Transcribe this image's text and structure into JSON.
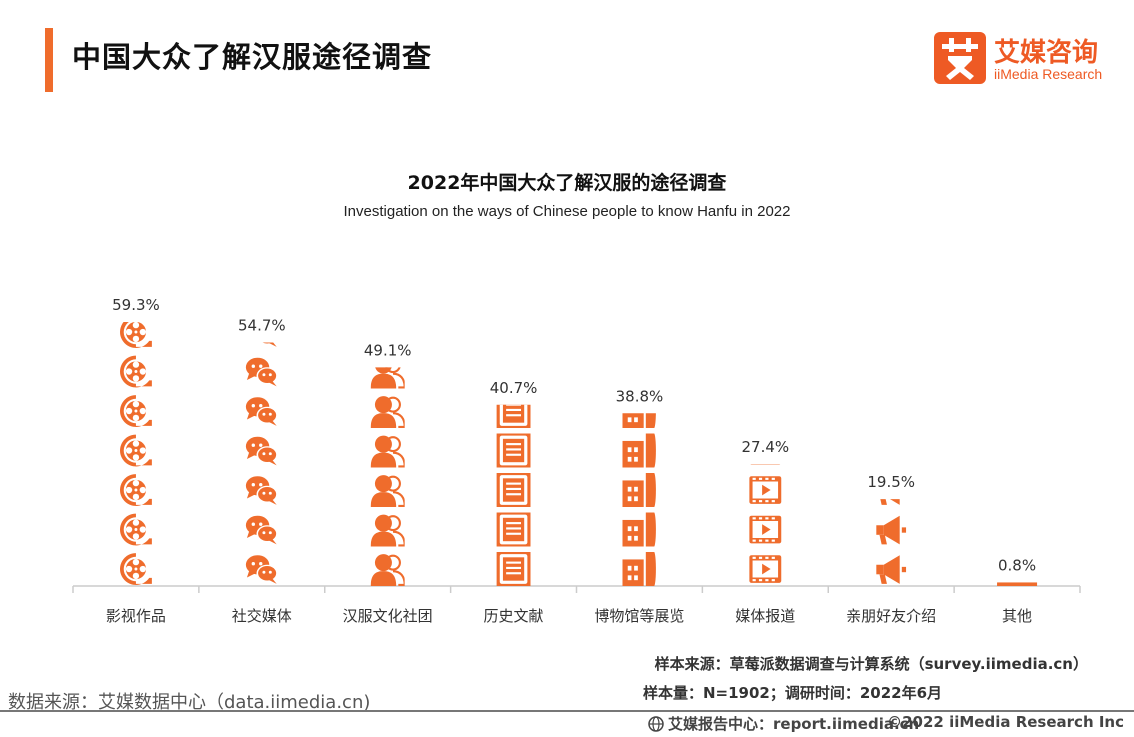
{
  "header": {
    "title": "中国大众了解汉服途径调查"
  },
  "logo": {
    "mark_char": "艾",
    "name_cn": "艾媒咨询",
    "name_en": "iiMedia Research"
  },
  "colors": {
    "accent": "#ef6c2c",
    "axis": "#cccccc",
    "label": "#333333"
  },
  "chart_data": {
    "type": "bar",
    "title": "2022年中国大众了解汉服的途径调查",
    "subtitle": "Investigation on the ways of Chinese people to know Hanfu in 2022",
    "categories": [
      "影视作品",
      "社交媒体",
      "汉服文化社团",
      "历史文献",
      "博物馆等展览",
      "媒体报道",
      "亲朋好友介绍",
      "其他"
    ],
    "values": [
      59.3,
      54.7,
      49.1,
      40.7,
      38.8,
      27.4,
      19.5,
      0.8
    ],
    "value_labels": [
      "59.3%",
      "54.7%",
      "49.1%",
      "40.7%",
      "38.8%",
      "27.4%",
      "19.5%",
      "0.8%"
    ],
    "icons": [
      "film-reel-icon",
      "chat-bubbles-icon",
      "person-group-icon",
      "document-icon",
      "building-icon",
      "video-player-icon",
      "megaphone-icon",
      "none"
    ],
    "unit": "%",
    "ylim": [
      0,
      60
    ],
    "grid": false,
    "legend": "none"
  },
  "notes": {
    "sample_source": "样本来源：草莓派数据调查与计算系统（survey.iimedia.cn）",
    "sample_size": "样本量：N=1902；调研时间：2022年6月",
    "data_source": "数据来源：艾媒数据中心（data.iimedia.cn)"
  },
  "footer": {
    "report_center": "艾媒报告中心：report.iimedia.cn",
    "copyright": "©2022  iiMedia Research  Inc"
  }
}
